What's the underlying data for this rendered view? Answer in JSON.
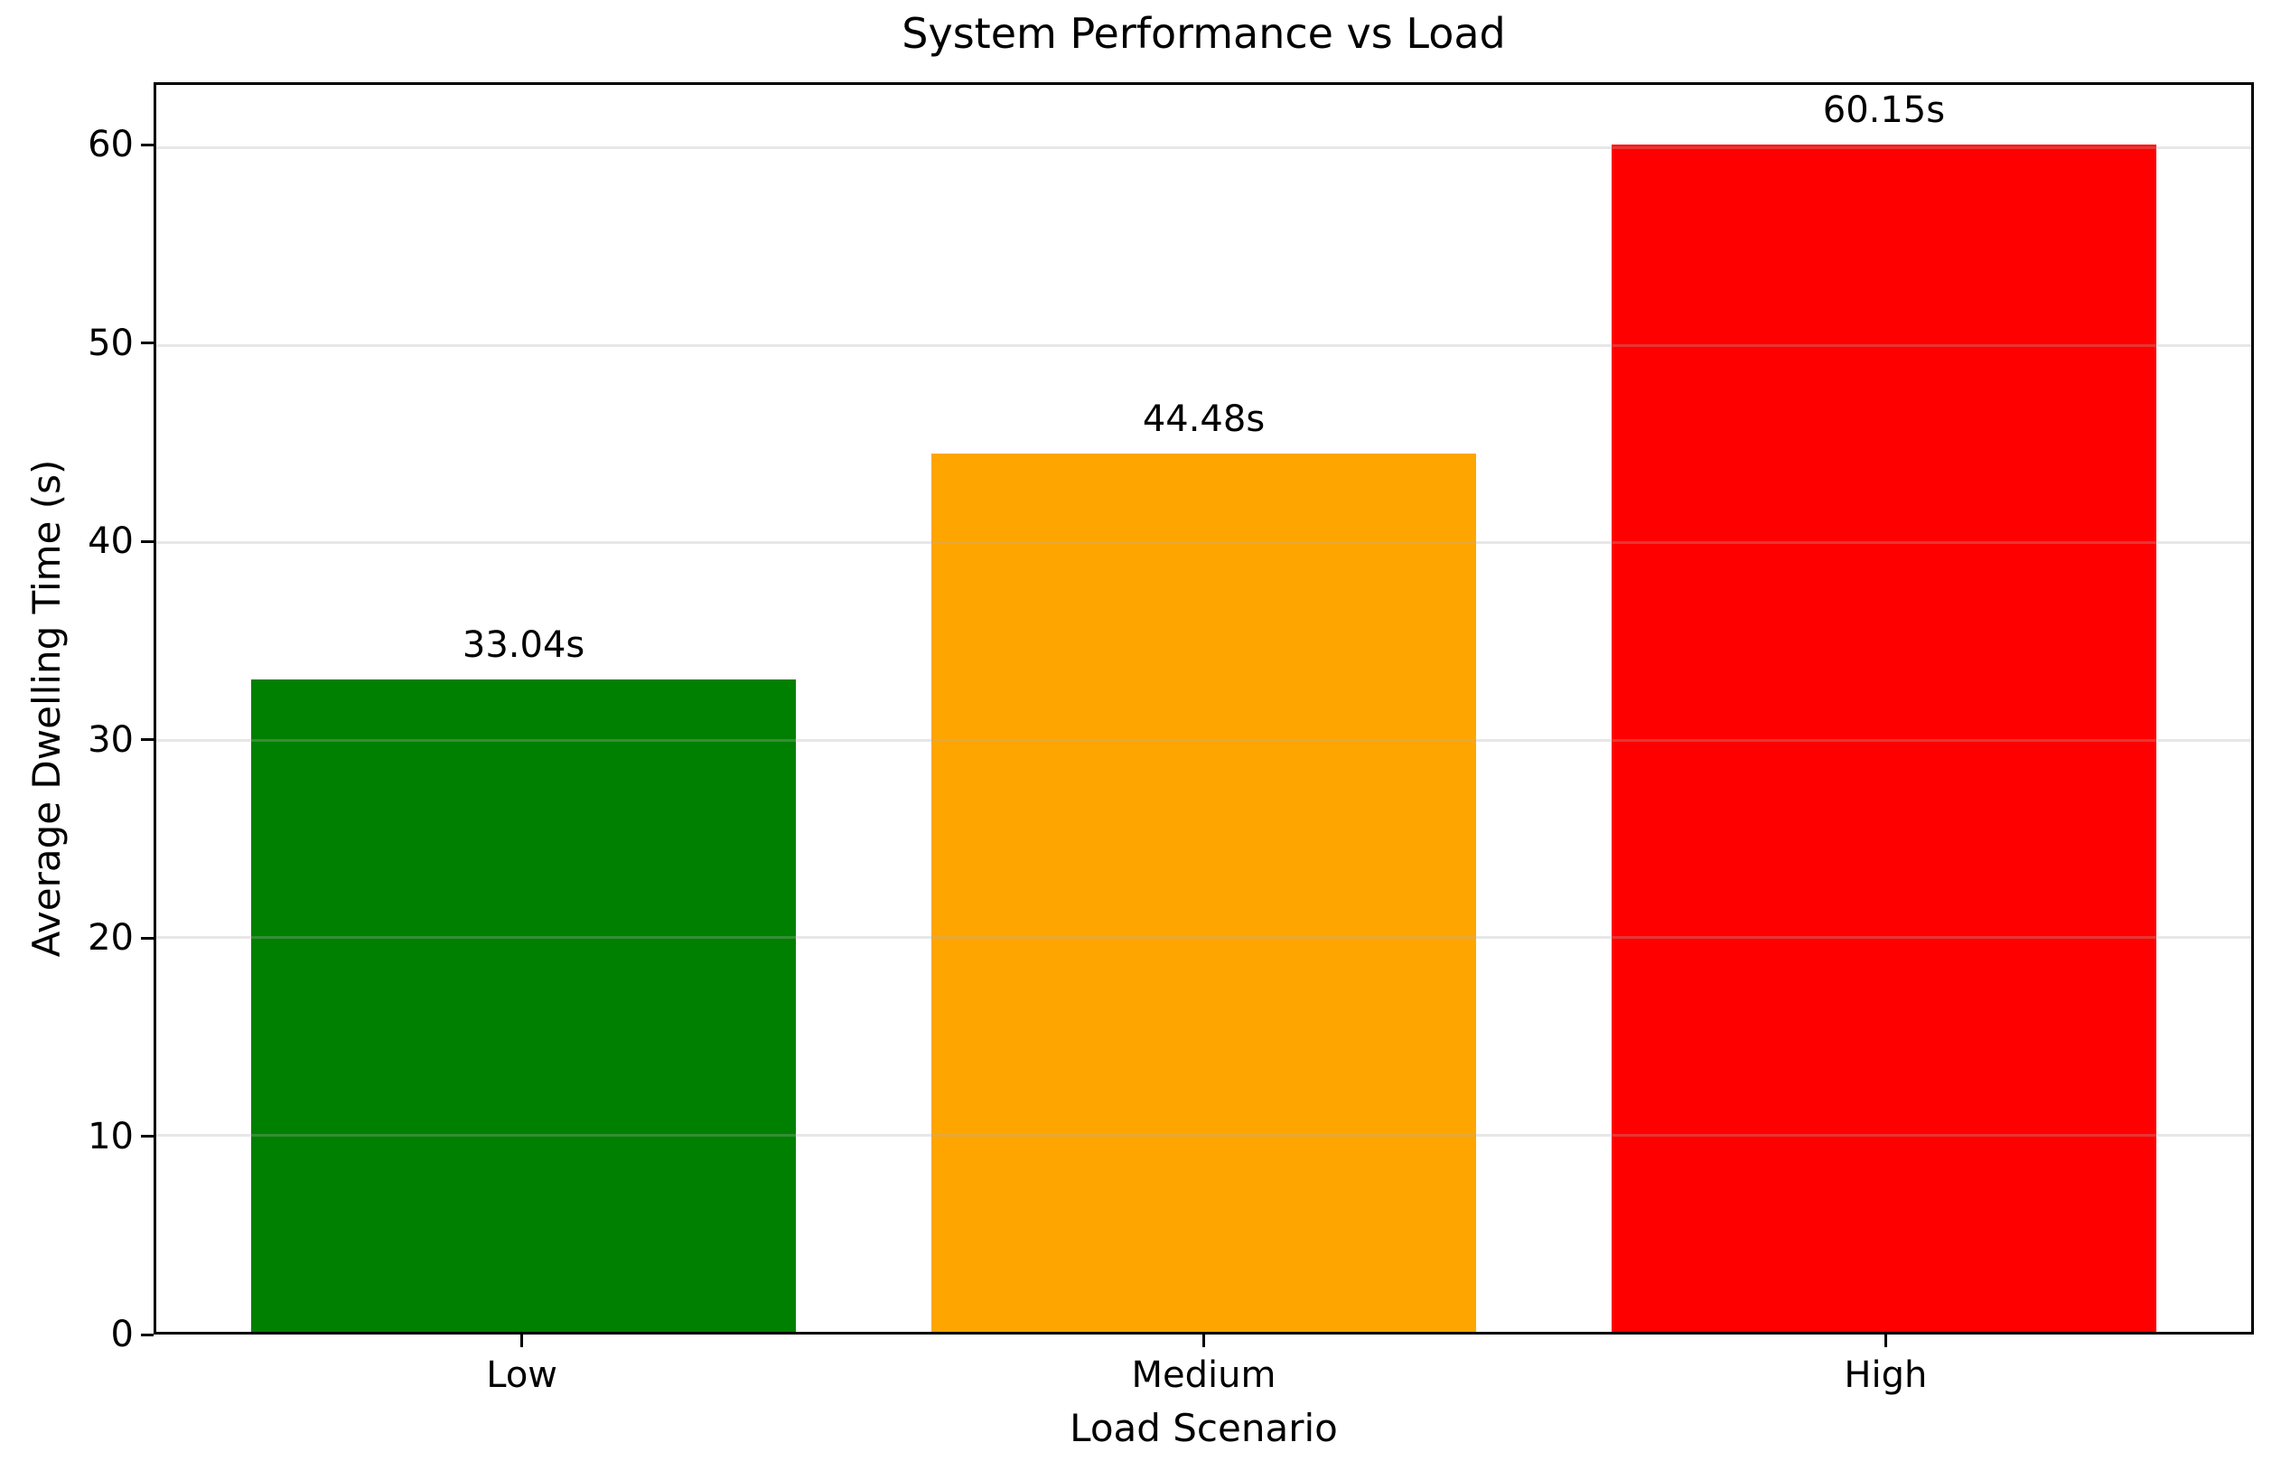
{
  "chart_data": {
    "type": "bar",
    "title": "System Performance vs Load",
    "xlabel": "Load Scenario",
    "ylabel": "Average Dwelling Time (s)",
    "categories": [
      "Low",
      "Medium",
      "High"
    ],
    "values": [
      33.04,
      44.48,
      60.15
    ],
    "value_labels": [
      "33.04s",
      "44.48s",
      "60.15s"
    ],
    "bar_colors": [
      "#008000",
      "#ffa500",
      "#ff0000"
    ],
    "yticks": [
      0,
      10,
      20,
      30,
      40,
      50,
      60
    ],
    "ylim": [
      0,
      63.16
    ],
    "bar_width_fraction": 0.8,
    "grid": "horizontal",
    "grid_color": "#b0b0b0",
    "grid_alpha": 0.3,
    "legend_position": "none",
    "plot_background": "#ffffff",
    "spine_color": "#000000"
  }
}
